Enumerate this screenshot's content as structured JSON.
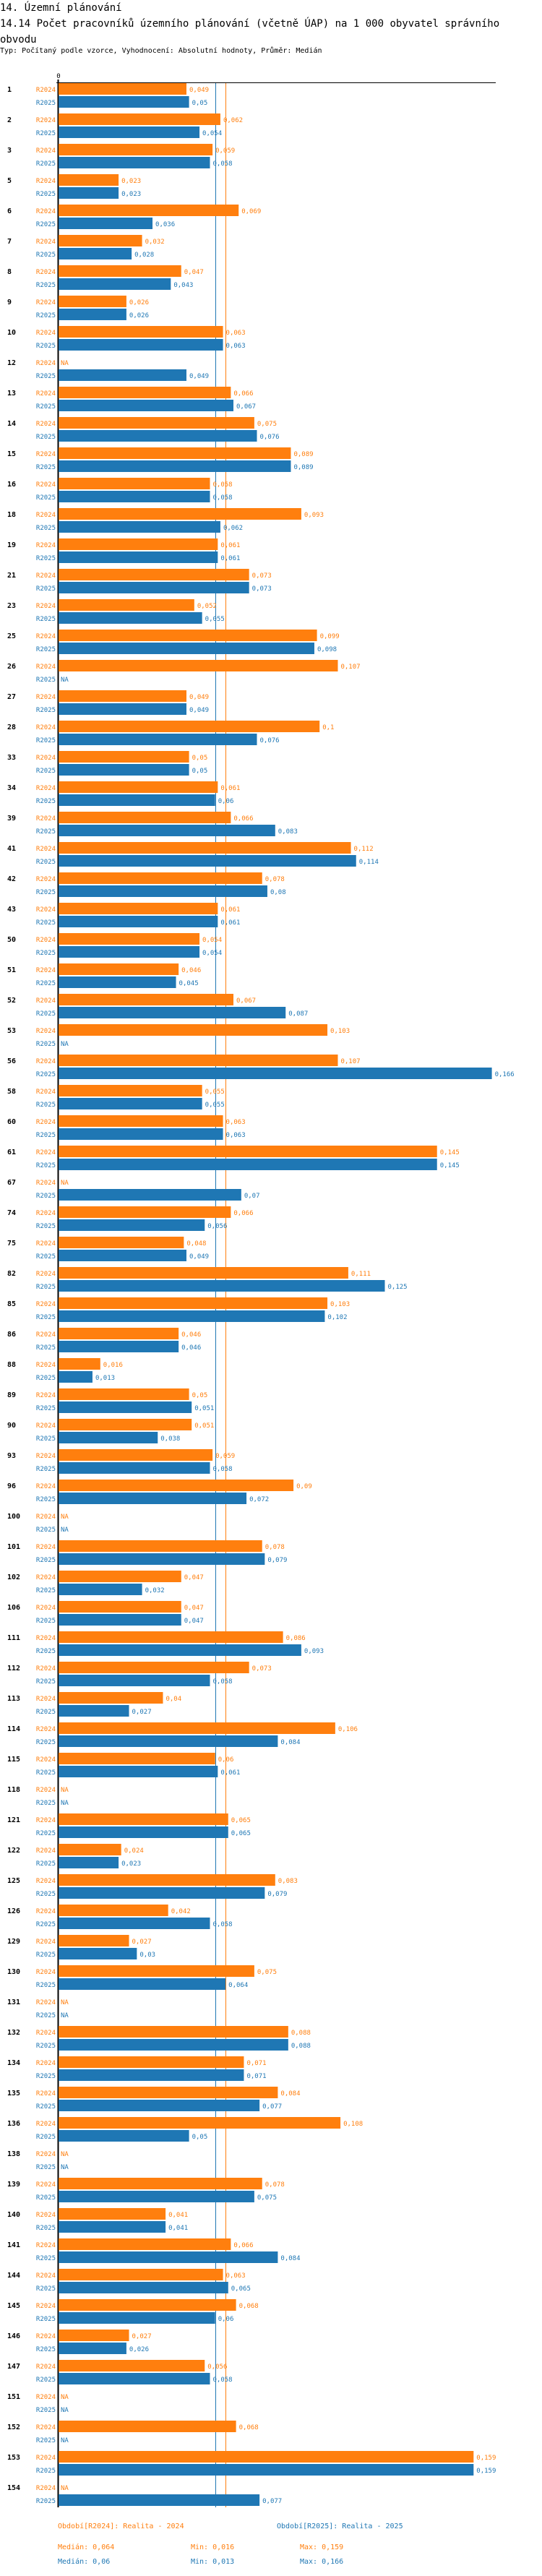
{
  "header": {
    "section": "14. Územní plánování",
    "title": "14.14 Počet pracovníků územního plánování (včetně ÚAP) na 1 000 obyvatel správního obvodu",
    "subtitle": "Typ: Počítaný podle vzorce, Vyhodnocení: Absolutní hodnoty, Průměr: Medián"
  },
  "colors": {
    "R2024": "#ff7f0e",
    "R2025": "#1f77b4",
    "axis": "#000000"
  },
  "chart_data": {
    "type": "bar",
    "orientation": "horizontal",
    "title": "14.14 Počet pracovníků územního plánování (včetně ÚAP) na 1 000 obyvatel správního obvodu",
    "xlabel": "",
    "ylabel": "",
    "axis_zero_label": "0",
    "xlim": [
      0,
      0.166
    ],
    "grid": false,
    "legend_position": "bottom",
    "decimal_separator": ",",
    "na_label": "NA",
    "categories": [
      "1",
      "2",
      "3",
      "5",
      "6",
      "7",
      "8",
      "9",
      "10",
      "12",
      "13",
      "14",
      "15",
      "16",
      "18",
      "19",
      "21",
      "23",
      "25",
      "26",
      "27",
      "28",
      "33",
      "34",
      "39",
      "41",
      "42",
      "43",
      "50",
      "51",
      "52",
      "53",
      "56",
      "58",
      "60",
      "61",
      "67",
      "74",
      "75",
      "82",
      "85",
      "86",
      "88",
      "89",
      "90",
      "93",
      "96",
      "100",
      "101",
      "102",
      "106",
      "111",
      "112",
      "113",
      "114",
      "115",
      "118",
      "121",
      "122",
      "125",
      "126",
      "129",
      "130",
      "131",
      "132",
      "134",
      "135",
      "136",
      "138",
      "139",
      "140",
      "141",
      "144",
      "145",
      "146",
      "147",
      "151",
      "152",
      "153",
      "154"
    ],
    "series": [
      {
        "name": "R2024",
        "label": "Období[R2024]: Realita - 2024",
        "values": [
          0.049,
          0.062,
          0.059,
          0.023,
          0.069,
          0.032,
          0.047,
          0.026,
          0.063,
          null,
          0.066,
          0.075,
          0.089,
          0.058,
          0.093,
          0.061,
          0.073,
          0.052,
          0.099,
          0.107,
          0.049,
          0.1,
          0.05,
          0.061,
          0.066,
          0.112,
          0.078,
          0.061,
          0.054,
          0.046,
          0.067,
          0.103,
          0.107,
          0.055,
          0.063,
          0.145,
          null,
          0.066,
          0.048,
          0.111,
          0.103,
          0.046,
          0.016,
          0.05,
          0.051,
          0.059,
          0.09,
          null,
          0.078,
          0.047,
          0.047,
          0.086,
          0.073,
          0.04,
          0.106,
          0.06,
          null,
          0.065,
          0.024,
          0.083,
          0.042,
          0.027,
          0.075,
          null,
          0.088,
          0.071,
          0.084,
          0.108,
          null,
          0.078,
          0.041,
          0.066,
          0.063,
          0.068,
          0.027,
          0.056,
          null,
          0.068,
          0.159,
          null
        ],
        "median": 0.064,
        "min": 0.016,
        "max": 0.159
      },
      {
        "name": "R2025",
        "label": "Období[R2025]: Realita - 2025",
        "values": [
          0.05,
          0.054,
          0.058,
          0.023,
          0.036,
          0.028,
          0.043,
          0.026,
          0.063,
          0.049,
          0.067,
          0.076,
          0.089,
          0.058,
          0.062,
          0.061,
          0.073,
          0.055,
          0.098,
          null,
          0.049,
          0.076,
          0.05,
          0.06,
          0.083,
          0.114,
          0.08,
          0.061,
          0.054,
          0.045,
          0.087,
          null,
          0.166,
          0.055,
          0.063,
          0.145,
          0.07,
          0.056,
          0.049,
          0.125,
          0.102,
          0.046,
          0.013,
          0.051,
          0.038,
          0.058,
          0.072,
          null,
          0.079,
          0.032,
          0.047,
          0.093,
          0.058,
          0.027,
          0.084,
          0.061,
          null,
          0.065,
          0.023,
          0.079,
          0.058,
          0.03,
          0.064,
          null,
          0.088,
          0.071,
          0.077,
          0.05,
          null,
          0.075,
          0.041,
          0.084,
          0.065,
          0.06,
          0.026,
          0.058,
          null,
          null,
          0.159,
          0.077
        ],
        "median": 0.06,
        "min": 0.013,
        "max": 0.166
      }
    ]
  },
  "legend": {
    "r2024_label": "Období[R2024]: Realita - 2024",
    "r2025_label": "Období[R2025]: Realita - 2025",
    "r2024_median": "Medián: 0,064",
    "r2024_min": "Min: 0,016",
    "r2024_max": "Max: 0,159",
    "r2025_median": "Medián: 0,06",
    "r2025_min": "Min: 0,013",
    "r2025_max": "Max: 0,166"
  }
}
